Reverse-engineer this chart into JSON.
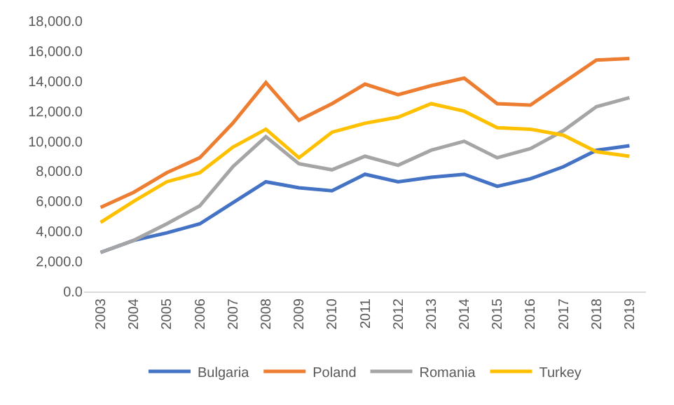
{
  "chart_data": {
    "type": "line",
    "categories": [
      "2003",
      "2004",
      "2005",
      "2006",
      "2007",
      "2008",
      "2009",
      "2010",
      "2011",
      "2012",
      "2013",
      "2014",
      "2015",
      "2016",
      "2017",
      "2018",
      "2019"
    ],
    "series": [
      {
        "name": "Bulgaria",
        "color": "#4472c4",
        "values": [
          2600,
          3400,
          3900,
          4500,
          5900,
          7300,
          6900,
          6700,
          7800,
          7300,
          7600,
          7800,
          7000,
          7500,
          8300,
          9400,
          9700
        ]
      },
      {
        "name": "Poland",
        "color": "#ed7d31",
        "values": [
          5600,
          6600,
          7900,
          8900,
          11200,
          13900,
          11400,
          12500,
          13800,
          13100,
          13700,
          14200,
          12500,
          12400,
          13900,
          15400,
          15500
        ]
      },
      {
        "name": "Romania",
        "color": "#a5a5a5",
        "values": [
          2600,
          3400,
          4500,
          5700,
          8300,
          10300,
          8500,
          8100,
          9000,
          8400,
          9400,
          10000,
          8900,
          9500,
          10700,
          12300,
          12900
        ]
      },
      {
        "name": "Turkey",
        "color": "#ffc000",
        "values": [
          4600,
          6000,
          7300,
          7900,
          9600,
          10800,
          8900,
          10600,
          11200,
          11600,
          12500,
          12000,
          10900,
          10800,
          10400,
          9300,
          9000
        ]
      }
    ],
    "ylim": [
      0,
      18000
    ],
    "yticks": [
      {
        "value": 0,
        "label": "0.0"
      },
      {
        "value": 2000,
        "label": "2,000.0"
      },
      {
        "value": 4000,
        "label": "4,000.0"
      },
      {
        "value": 6000,
        "label": "6,000.0"
      },
      {
        "value": 8000,
        "label": "8,000.0"
      },
      {
        "value": 10000,
        "label": "10,000.0"
      },
      {
        "value": 12000,
        "label": "12,000.0"
      },
      {
        "value": 14000,
        "label": "14,000.0"
      },
      {
        "value": 16000,
        "label": "16,000.0"
      },
      {
        "value": 18000,
        "label": "18,000.0"
      }
    ],
    "grid": false,
    "legend": "bottom",
    "marker": "none",
    "line_style": "solid"
  }
}
